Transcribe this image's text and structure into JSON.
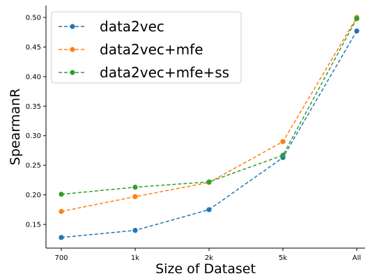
{
  "chart_data": {
    "type": "line",
    "title": "",
    "xlabel": "Size of Dataset",
    "ylabel": "SpearmanR",
    "categories": [
      "700",
      "1k",
      "2k",
      "5k",
      "All"
    ],
    "ylim": [
      0.11,
      0.52
    ],
    "yticks": [
      "0.15",
      "0.20",
      "0.25",
      "0.30",
      "0.35",
      "0.40",
      "0.45",
      "0.50"
    ],
    "grid": false,
    "legend_position": "top-left",
    "line_style": "dashed",
    "marker": "circle",
    "series": [
      {
        "name": "data2vec",
        "color": "#1f77b4",
        "values": [
          0.128,
          0.14,
          0.175,
          0.263,
          0.477
        ]
      },
      {
        "name": "data2vec+mfe",
        "color": "#ff7f0e",
        "values": [
          0.172,
          0.197,
          0.221,
          0.29,
          0.5
        ]
      },
      {
        "name": "data2vec+mfe+ss",
        "color": "#2ca02c",
        "values": [
          0.201,
          0.213,
          0.222,
          0.267,
          0.498
        ]
      }
    ]
  }
}
